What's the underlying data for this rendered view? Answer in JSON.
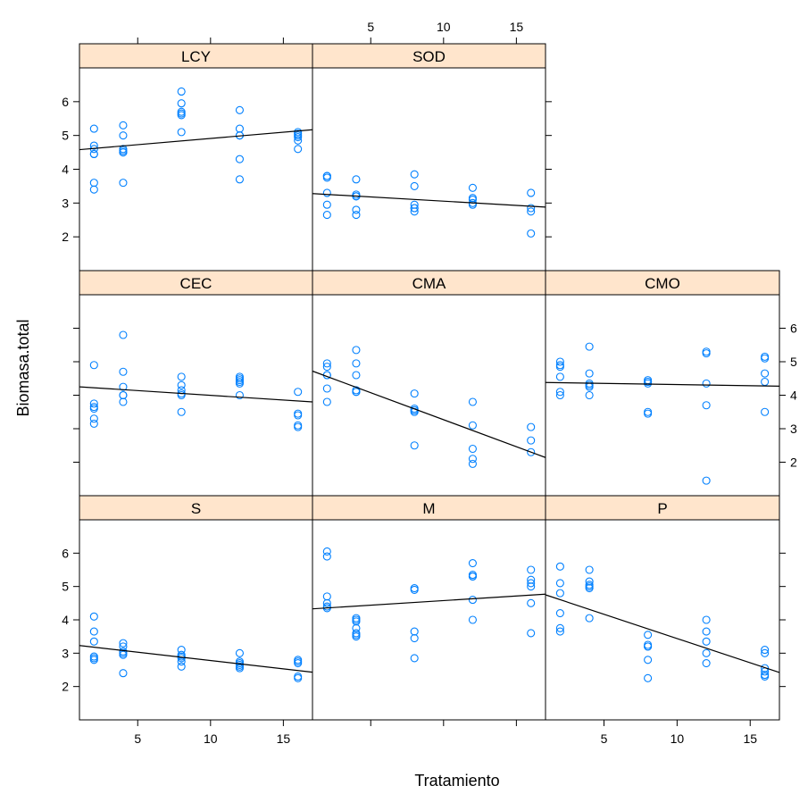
{
  "chart_data": {
    "type": "scatter",
    "layout": "trellis-panels",
    "xlabel": "Tratamiento",
    "ylabel": "Biomasa.total",
    "xlim": [
      1,
      17
    ],
    "ylim": [
      1,
      7
    ],
    "x_ticks": [
      5,
      10,
      15
    ],
    "y_ticks": [
      2,
      3,
      4,
      5,
      6
    ],
    "colors": {
      "point": "#0080ff",
      "line": "#000000",
      "strip": "#ffe5cc",
      "frame": "#000000"
    },
    "panels": [
      {
        "name": "LCY",
        "x": [
          2,
          2,
          2,
          2,
          2,
          2,
          2,
          4,
          4,
          4,
          4,
          4,
          4,
          4,
          8,
          8,
          8,
          8,
          8,
          8,
          12,
          12,
          12,
          12,
          12,
          12,
          16,
          16,
          16,
          16,
          16,
          16
        ],
        "y": [
          5.2,
          4.7,
          4.6,
          4.45,
          3.6,
          3.4,
          4.45,
          5.3,
          5.0,
          4.6,
          4.5,
          4.55,
          3.6,
          4.5,
          6.3,
          5.95,
          5.7,
          5.65,
          5.1,
          5.6,
          5.75,
          5.2,
          5.0,
          4.3,
          3.7,
          5.0,
          5.1,
          5.0,
          4.95,
          4.85,
          4.6,
          5.05
        ],
        "fit": [
          [
            1,
            4.58
          ],
          [
            17,
            5.17
          ]
        ]
      },
      {
        "name": "SOD",
        "x": [
          2,
          2,
          2,
          2,
          2,
          2,
          4,
          4,
          4,
          4,
          4,
          4,
          8,
          8,
          8,
          8,
          8,
          8,
          12,
          12,
          12,
          12,
          12,
          16,
          16,
          16,
          16
        ],
        "y": [
          3.8,
          3.75,
          3.3,
          2.95,
          2.65,
          3.8,
          3.7,
          3.25,
          3.2,
          2.8,
          2.65,
          3.2,
          3.85,
          3.5,
          2.95,
          2.85,
          2.75,
          2.85,
          3.45,
          3.15,
          3.1,
          3.0,
          2.95,
          3.3,
          2.85,
          2.75,
          2.1
        ],
        "fit": [
          [
            1,
            3.28
          ],
          [
            17,
            2.88
          ]
        ]
      },
      {
        "name": "CEC",
        "x": [
          2,
          2,
          2,
          2,
          2,
          2,
          4,
          4,
          4,
          4,
          4,
          4,
          8,
          8,
          8,
          8,
          8,
          8,
          12,
          12,
          12,
          12,
          12,
          12,
          16,
          16,
          16,
          16,
          16
        ],
        "y": [
          4.9,
          3.75,
          3.65,
          3.6,
          3.3,
          3.15,
          5.8,
          4.7,
          4.25,
          4.0,
          3.8,
          4.0,
          4.55,
          4.3,
          4.15,
          4.05,
          3.5,
          4.0,
          4.55,
          4.45,
          4.4,
          4.35,
          4.0,
          4.5,
          4.1,
          3.45,
          3.4,
          3.1,
          3.05
        ],
        "fit": [
          [
            1,
            4.25
          ],
          [
            17,
            3.8
          ]
        ]
      },
      {
        "name": "CMA",
        "x": [
          2,
          2,
          2,
          2,
          2,
          2,
          4,
          4,
          4,
          4,
          4,
          4,
          8,
          8,
          8,
          8,
          8,
          8,
          12,
          12,
          12,
          12,
          12,
          16,
          16,
          16
        ],
        "y": [
          4.95,
          4.85,
          4.6,
          4.2,
          3.8,
          4.6,
          5.35,
          4.95,
          4.6,
          4.15,
          4.1,
          4.1,
          4.05,
          3.6,
          3.55,
          3.5,
          2.5,
          3.55,
          3.8,
          3.1,
          2.4,
          2.1,
          1.95,
          3.05,
          2.65,
          2.3
        ],
        "fit": [
          [
            1,
            4.72
          ],
          [
            17,
            2.14
          ]
        ]
      },
      {
        "name": "CMO",
        "x": [
          2,
          2,
          2,
          2,
          2,
          2,
          4,
          4,
          4,
          4,
          4,
          4,
          8,
          8,
          8,
          8,
          8,
          8,
          12,
          12,
          12,
          12,
          12,
          16,
          16,
          16,
          16,
          16
        ],
        "y": [
          5.0,
          4.85,
          4.55,
          4.1,
          4.0,
          4.9,
          5.45,
          4.65,
          4.35,
          4.25,
          4.0,
          4.3,
          4.45,
          4.4,
          4.35,
          3.5,
          3.45,
          4.4,
          5.3,
          5.25,
          4.35,
          3.7,
          1.45,
          5.15,
          5.1,
          4.65,
          4.4,
          3.5
        ],
        "fit": [
          [
            1,
            4.38
          ],
          [
            17,
            4.27
          ]
        ]
      },
      {
        "name": "S",
        "x": [
          2,
          2,
          2,
          2,
          2,
          2,
          4,
          4,
          4,
          4,
          4,
          4,
          8,
          8,
          8,
          8,
          8,
          8,
          12,
          12,
          12,
          12,
          12,
          12,
          16,
          16,
          16,
          16,
          16
        ],
        "y": [
          4.1,
          3.65,
          3.35,
          2.9,
          2.85,
          2.8,
          3.3,
          3.2,
          3.05,
          3.0,
          2.95,
          2.4,
          3.1,
          2.95,
          2.85,
          2.75,
          2.6,
          2.9,
          3.0,
          2.75,
          2.65,
          2.6,
          2.55,
          2.7,
          2.8,
          2.75,
          2.7,
          2.3,
          2.25
        ],
        "fit": [
          [
            1,
            3.23
          ],
          [
            17,
            2.43
          ]
        ]
      },
      {
        "name": "M",
        "x": [
          2,
          2,
          2,
          2,
          2,
          2,
          4,
          4,
          4,
          4,
          4,
          4,
          4,
          8,
          8,
          8,
          8,
          8,
          12,
          12,
          12,
          12,
          12,
          12,
          16,
          16,
          16,
          16,
          16,
          16
        ],
        "y": [
          6.05,
          5.9,
          4.7,
          4.5,
          4.4,
          4.35,
          4.05,
          3.95,
          3.75,
          3.6,
          3.55,
          3.5,
          4.0,
          4.95,
          4.9,
          3.65,
          3.45,
          2.85,
          5.7,
          5.3,
          5.3,
          4.6,
          4.0,
          5.35,
          5.5,
          5.2,
          5.1,
          5.0,
          4.5,
          3.6
        ],
        "fit": [
          [
            1,
            4.33
          ],
          [
            17,
            4.77
          ]
        ]
      },
      {
        "name": "P",
        "x": [
          2,
          2,
          2,
          2,
          2,
          2,
          4,
          4,
          4,
          4,
          4,
          4,
          8,
          8,
          8,
          8,
          8,
          8,
          12,
          12,
          12,
          12,
          12,
          16,
          16,
          16,
          16,
          16,
          16
        ],
        "y": [
          5.6,
          5.1,
          4.2,
          3.75,
          3.65,
          4.8,
          5.5,
          5.15,
          5.05,
          5.0,
          4.95,
          4.05,
          3.55,
          3.25,
          3.2,
          2.8,
          2.25,
          3.2,
          4.0,
          3.65,
          3.35,
          3.0,
          2.7,
          3.1,
          3.0,
          2.55,
          2.45,
          2.35,
          2.3
        ],
        "fit": [
          [
            1,
            4.75
          ],
          [
            17,
            2.42
          ]
        ]
      }
    ]
  }
}
